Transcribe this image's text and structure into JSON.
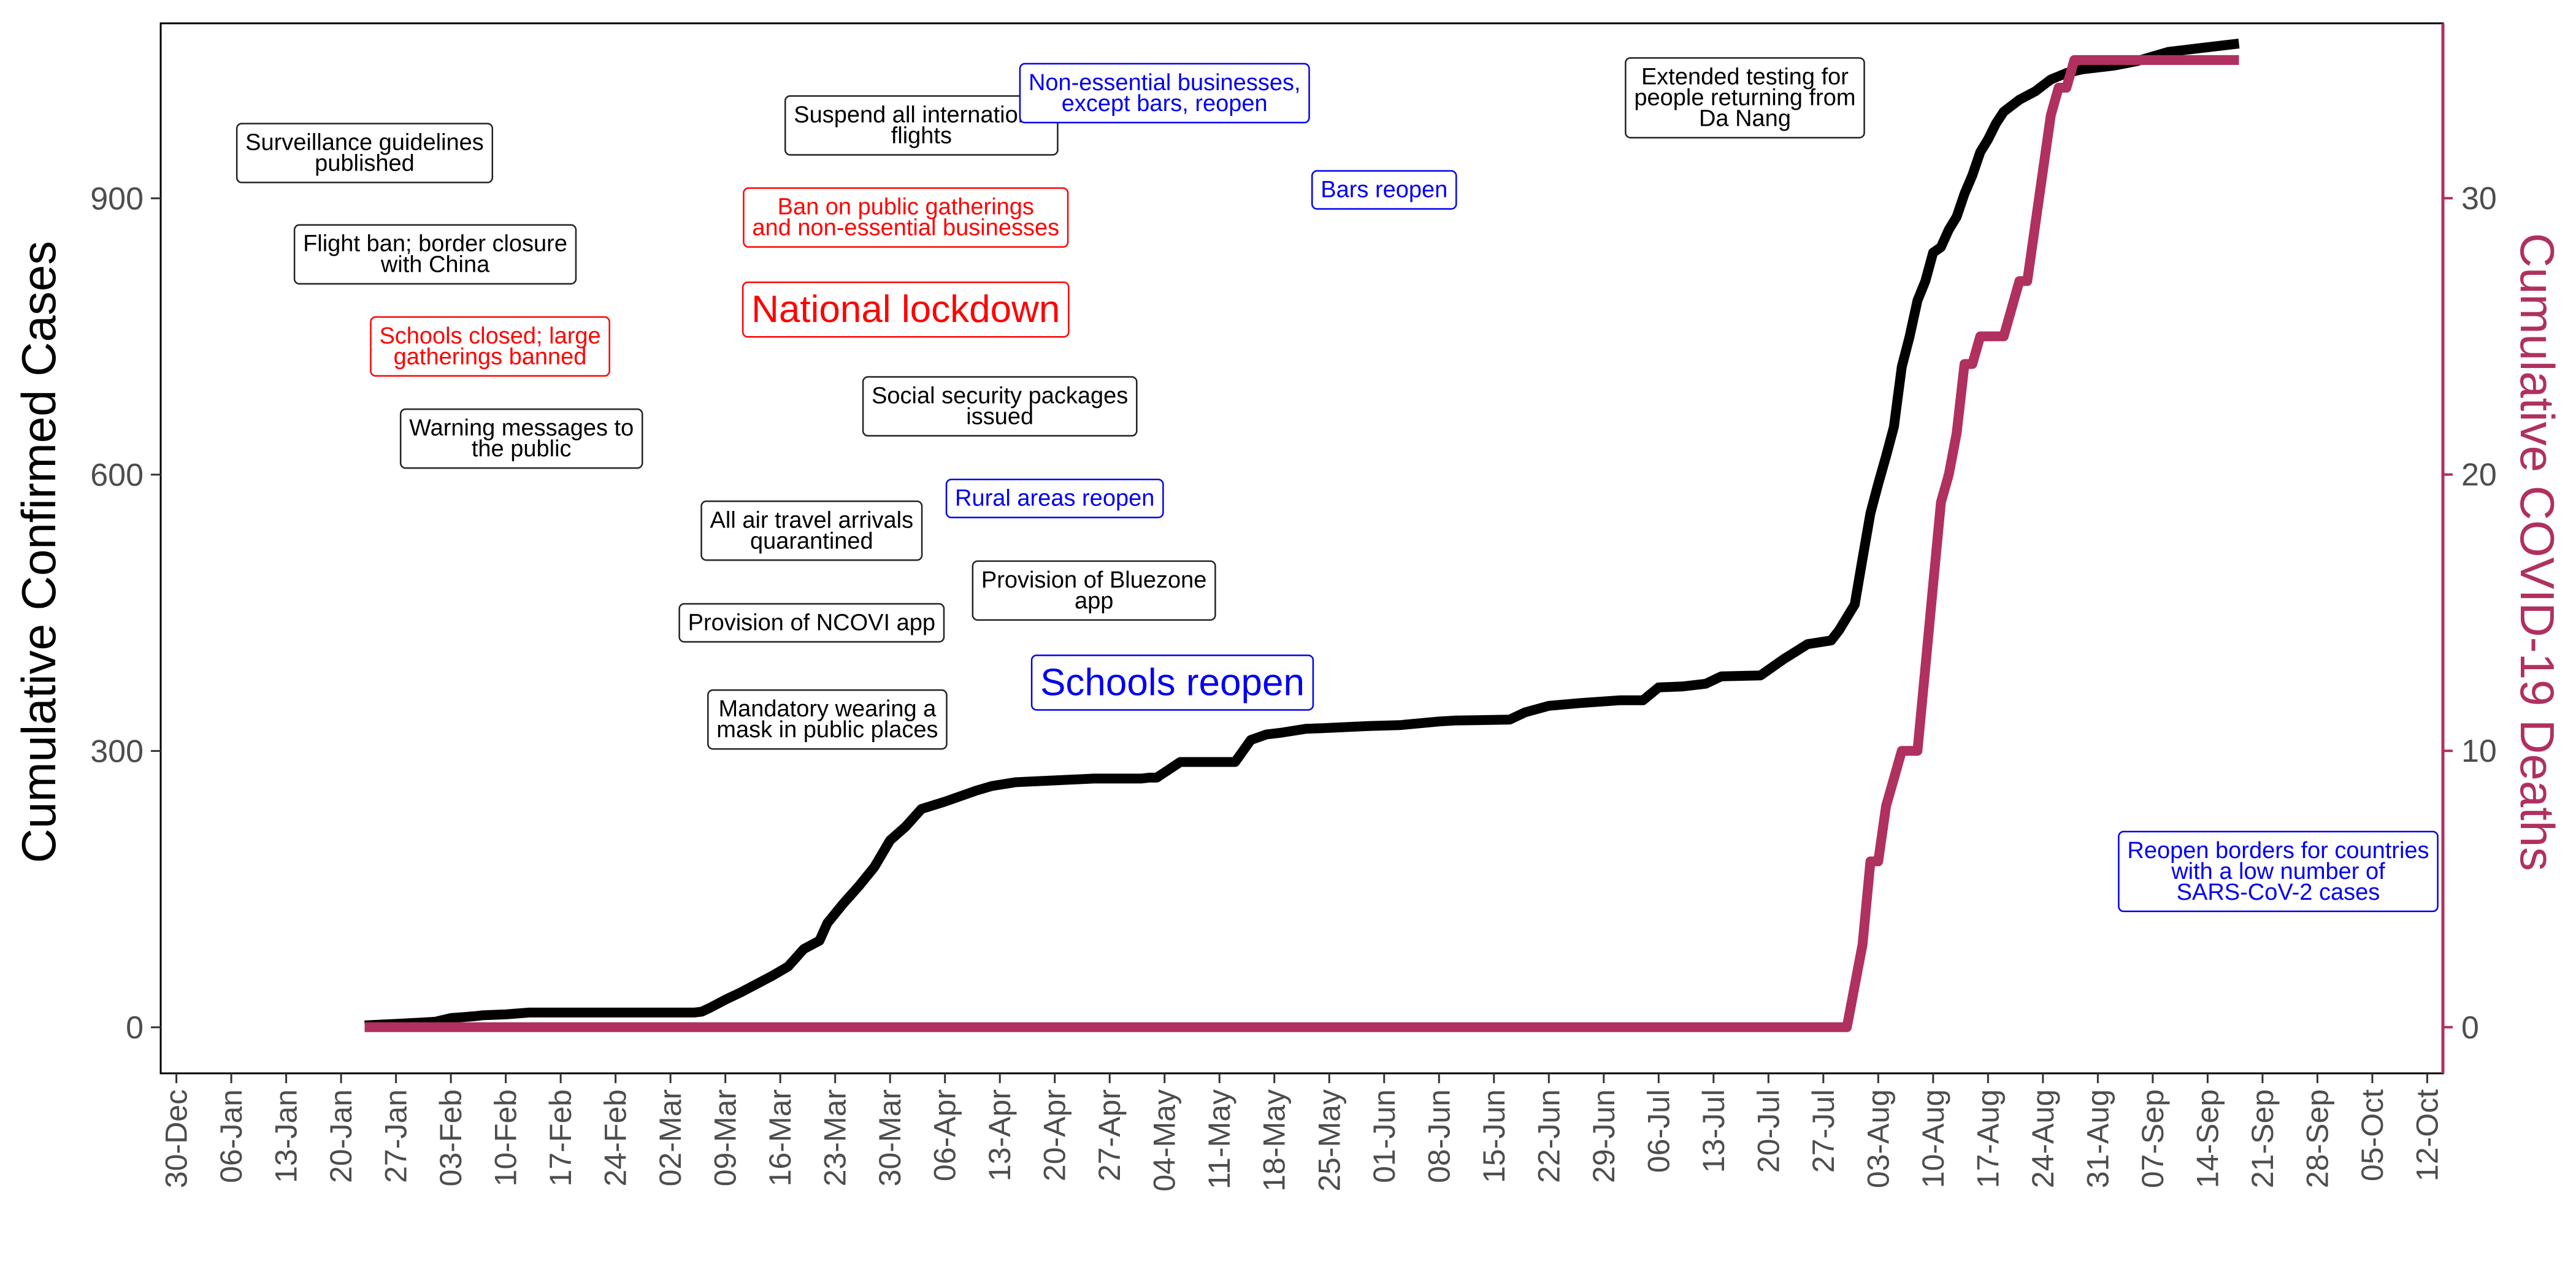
{
  "chart_data": {
    "type": "line",
    "xlabel": "",
    "ylabel": "Cumulative Confirmed Cases",
    "y2label": "Cumulative COVID-19 Deaths",
    "xlim": [
      "2019-12-28",
      "2020-10-14"
    ],
    "ylim": [
      -50,
      1090
    ],
    "y2lim": [
      -1.67,
      36.33
    ],
    "grid": false,
    "x_ticks": [
      "30-Dec",
      "06-Jan",
      "13-Jan",
      "20-Jan",
      "27-Jan",
      "03-Feb",
      "10-Feb",
      "17-Feb",
      "24-Feb",
      "02-Mar",
      "09-Mar",
      "16-Mar",
      "23-Mar",
      "30-Mar",
      "06-Apr",
      "13-Apr",
      "20-Apr",
      "27-Apr",
      "04-May",
      "11-May",
      "18-May",
      "25-May",
      "01-Jun",
      "08-Jun",
      "15-Jun",
      "22-Jun",
      "29-Jun",
      "06-Jul",
      "13-Jul",
      "20-Jul",
      "27-Jul",
      "03-Aug",
      "10-Aug",
      "17-Aug",
      "24-Aug",
      "31-Aug",
      "07-Sep",
      "14-Sep",
      "21-Sep",
      "28-Sep",
      "05-Oct",
      "12-Oct"
    ],
    "x_tick_dates": [
      "2019-12-30",
      "2020-01-06",
      "2020-01-13",
      "2020-01-20",
      "2020-01-27",
      "2020-02-03",
      "2020-02-10",
      "2020-02-17",
      "2020-02-24",
      "2020-03-02",
      "2020-03-09",
      "2020-03-16",
      "2020-03-23",
      "2020-03-30",
      "2020-04-06",
      "2020-04-13",
      "2020-04-20",
      "2020-04-27",
      "2020-05-04",
      "2020-05-11",
      "2020-05-18",
      "2020-05-25",
      "2020-06-01",
      "2020-06-08",
      "2020-06-15",
      "2020-06-22",
      "2020-06-29",
      "2020-07-06",
      "2020-07-13",
      "2020-07-20",
      "2020-07-27",
      "2020-08-03",
      "2020-08-10",
      "2020-08-17",
      "2020-08-24",
      "2020-08-31",
      "2020-09-07",
      "2020-09-14",
      "2020-09-21",
      "2020-09-28",
      "2020-10-05",
      "2020-10-12"
    ],
    "y_ticks": [
      0,
      300,
      600,
      900
    ],
    "y2_ticks": [
      0,
      10,
      20,
      30
    ],
    "series": [
      {
        "axis": "left",
        "color": "#000000",
        "points": [
          [
            "2020-01-23",
            2
          ],
          [
            "2020-01-30",
            5
          ],
          [
            "2020-02-01",
            6
          ],
          [
            "2020-02-03",
            10
          ],
          [
            "2020-02-06",
            12
          ],
          [
            "2020-02-07",
            13
          ],
          [
            "2020-02-10",
            14
          ],
          [
            "2020-02-13",
            16
          ],
          [
            "2020-02-20",
            16
          ],
          [
            "2020-03-01",
            16
          ],
          [
            "2020-03-05",
            16
          ],
          [
            "2020-03-06",
            17
          ],
          [
            "2020-03-07",
            21
          ],
          [
            "2020-03-09",
            30
          ],
          [
            "2020-03-11",
            38
          ],
          [
            "2020-03-13",
            47
          ],
          [
            "2020-03-15",
            56
          ],
          [
            "2020-03-17",
            66
          ],
          [
            "2020-03-19",
            85
          ],
          [
            "2020-03-21",
            94
          ],
          [
            "2020-03-22",
            113
          ],
          [
            "2020-03-24",
            134
          ],
          [
            "2020-03-26",
            153
          ],
          [
            "2020-03-28",
            174
          ],
          [
            "2020-03-30",
            203
          ],
          [
            "2020-04-01",
            218
          ],
          [
            "2020-04-03",
            237
          ],
          [
            "2020-04-06",
            245
          ],
          [
            "2020-04-08",
            251
          ],
          [
            "2020-04-10",
            257
          ],
          [
            "2020-04-12",
            262
          ],
          [
            "2020-04-15",
            266
          ],
          [
            "2020-04-20",
            268
          ],
          [
            "2020-04-25",
            270
          ],
          [
            "2020-05-01",
            270
          ],
          [
            "2020-05-02",
            271
          ],
          [
            "2020-05-03",
            271
          ],
          [
            "2020-05-06",
            288
          ],
          [
            "2020-05-13",
            288
          ],
          [
            "2020-05-15",
            312
          ],
          [
            "2020-05-17",
            318
          ],
          [
            "2020-05-19",
            320
          ],
          [
            "2020-05-22",
            324
          ],
          [
            "2020-05-25",
            325
          ],
          [
            "2020-05-30",
            327
          ],
          [
            "2020-06-03",
            328
          ],
          [
            "2020-06-08",
            332
          ],
          [
            "2020-06-10",
            333
          ],
          [
            "2020-06-17",
            334
          ],
          [
            "2020-06-19",
            342
          ],
          [
            "2020-06-22",
            349
          ],
          [
            "2020-06-26",
            352
          ],
          [
            "2020-07-01",
            355
          ],
          [
            "2020-07-04",
            355
          ],
          [
            "2020-07-06",
            369
          ],
          [
            "2020-07-09",
            370
          ],
          [
            "2020-07-12",
            373
          ],
          [
            "2020-07-14",
            381
          ],
          [
            "2020-07-19",
            382
          ],
          [
            "2020-07-22",
            400
          ],
          [
            "2020-07-25",
            416
          ],
          [
            "2020-07-28",
            420
          ],
          [
            "2020-07-29",
            431
          ],
          [
            "2020-07-31",
            459
          ],
          [
            "2020-08-01",
            509
          ],
          [
            "2020-08-02",
            558
          ],
          [
            "2020-08-03",
            590
          ],
          [
            "2020-08-04",
            620
          ],
          [
            "2020-08-05",
            652
          ],
          [
            "2020-08-06",
            717
          ],
          [
            "2020-08-07",
            750
          ],
          [
            "2020-08-08",
            789
          ],
          [
            "2020-08-09",
            810
          ],
          [
            "2020-08-10",
            841
          ],
          [
            "2020-08-11",
            847
          ],
          [
            "2020-08-12",
            866
          ],
          [
            "2020-08-13",
            880
          ],
          [
            "2020-08-14",
            905
          ],
          [
            "2020-08-15",
            925
          ],
          [
            "2020-08-16",
            950
          ],
          [
            "2020-08-17",
            964
          ],
          [
            "2020-08-18",
            981
          ],
          [
            "2020-08-19",
            994
          ],
          [
            "2020-08-21",
            1007
          ],
          [
            "2020-08-23",
            1016
          ],
          [
            "2020-08-25",
            1029
          ],
          [
            "2020-08-27",
            1036
          ],
          [
            "2020-08-29",
            1040
          ],
          [
            "2020-09-02",
            1044
          ],
          [
            "2020-09-05",
            1049
          ],
          [
            "2020-09-09",
            1059
          ],
          [
            "2020-09-13",
            1063
          ],
          [
            "2020-09-18",
            1068
          ]
        ]
      },
      {
        "axis": "right",
        "color": "#b03060",
        "points": [
          [
            "2020-01-23",
            0
          ],
          [
            "2020-07-30",
            0
          ],
          [
            "2020-07-31",
            1.5
          ],
          [
            "2020-08-01",
            3
          ],
          [
            "2020-08-02",
            6
          ],
          [
            "2020-08-03",
            6
          ],
          [
            "2020-08-04",
            8
          ],
          [
            "2020-08-05",
            9
          ],
          [
            "2020-08-06",
            10
          ],
          [
            "2020-08-08",
            10
          ],
          [
            "2020-08-09",
            13
          ],
          [
            "2020-08-10",
            16
          ],
          [
            "2020-08-11",
            19
          ],
          [
            "2020-08-12",
            20
          ],
          [
            "2020-08-13",
            21.5
          ],
          [
            "2020-08-14",
            24
          ],
          [
            "2020-08-15",
            24
          ],
          [
            "2020-08-16",
            25
          ],
          [
            "2020-08-19",
            25
          ],
          [
            "2020-08-20",
            26
          ],
          [
            "2020-08-21",
            27
          ],
          [
            "2020-08-22",
            27
          ],
          [
            "2020-08-24",
            31
          ],
          [
            "2020-08-25",
            33
          ],
          [
            "2020-08-26",
            34
          ],
          [
            "2020-08-27",
            34
          ],
          [
            "2020-08-28",
            35
          ],
          [
            "2020-09-18",
            35
          ]
        ]
      }
    ],
    "annotations": [
      {
        "lines": [
          "Surveillance guidelines",
          "published"
        ],
        "date": "2020-01-23",
        "y": 950,
        "color": "#000000",
        "size": "small"
      },
      {
        "lines": [
          "Flight ban; border closure",
          "with China"
        ],
        "date": "2020-02-01",
        "y": 840,
        "color": "#000000",
        "size": "small"
      },
      {
        "lines": [
          "Schools closed; large",
          "gatherings banned"
        ],
        "date": "2020-02-08",
        "y": 740,
        "color": "#ff0000",
        "size": "small"
      },
      {
        "lines": [
          "Warning messages to",
          "the public"
        ],
        "date": "2020-02-12",
        "y": 640,
        "color": "#000000",
        "size": "small"
      },
      {
        "lines": [
          "Suspend all international",
          "flights"
        ],
        "date": "2020-04-03",
        "y": 980,
        "color": "#000000",
        "size": "small"
      },
      {
        "lines": [
          "Ban on public gatherings",
          "and non-essential businesses"
        ],
        "date": "2020-04-01",
        "y": 880,
        "color": "#ff0000",
        "size": "small"
      },
      {
        "lines": [
          "National lockdown"
        ],
        "date": "2020-04-01",
        "y": 780,
        "color": "#ff0000",
        "size": "large"
      },
      {
        "lines": [
          "Social security packages",
          "issued"
        ],
        "date": "2020-04-13",
        "y": 675,
        "color": "#000000",
        "size": "small"
      },
      {
        "lines": [
          "All air travel arrivals",
          "quarantined"
        ],
        "date": "2020-03-20",
        "y": 540,
        "color": "#000000",
        "size": "small"
      },
      {
        "lines": [
          "Provision of NCOVI app"
        ],
        "date": "2020-03-20",
        "y": 440,
        "color": "#000000",
        "size": "small"
      },
      {
        "lines": [
          "Mandatory wearing a",
          "mask in public places"
        ],
        "date": "2020-03-22",
        "y": 335,
        "color": "#000000",
        "size": "small"
      },
      {
        "lines": [
          "Non-essential businesses,",
          "except bars, reopen"
        ],
        "date": "2020-05-04",
        "y": 1015,
        "color": "#0000ee",
        "size": "small"
      },
      {
        "lines": [
          "Bars reopen"
        ],
        "date": "2020-06-01",
        "y": 910,
        "color": "#0000ee",
        "size": "small"
      },
      {
        "lines": [
          "Rural areas reopen"
        ],
        "date": "2020-04-20",
        "y": 575,
        "color": "#0000ee",
        "size": "small"
      },
      {
        "lines": [
          "Provision of Bluezone",
          "app"
        ],
        "date": "2020-04-25",
        "y": 475,
        "color": "#000000",
        "size": "small"
      },
      {
        "lines": [
          "Schools reopen"
        ],
        "date": "2020-05-05",
        "y": 375,
        "color": "#0000ee",
        "size": "large"
      },
      {
        "lines": [
          "Extended testing for",
          "people returning from",
          "Da Nang"
        ],
        "date": "2020-07-17",
        "y": 1010,
        "color": "#000000",
        "size": "small"
      },
      {
        "lines": [
          "Reopen borders for countries",
          "with a low number of",
          "SARS-CoV-2 cases"
        ],
        "date": "2020-09-23",
        "y": 170,
        "color": "#0000ee",
        "size": "small"
      }
    ]
  }
}
